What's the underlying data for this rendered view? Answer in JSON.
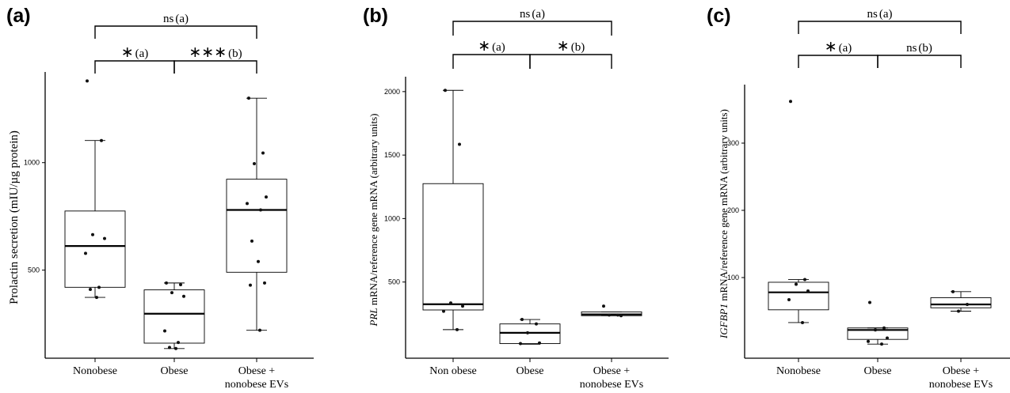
{
  "chart_data": [
    {
      "panel": "(a)",
      "type": "box",
      "ylabel": "Prolactin secretion (mIU/µg protein)",
      "ylabel_parts": [
        {
          "text": "Prolactin secretion (mIU/µg protein)",
          "italic": false
        }
      ],
      "categories": [
        [
          "Nonobese"
        ],
        [
          "Obese"
        ],
        [
          "Obese +",
          "nonobese EVs"
        ]
      ],
      "yticks": [
        500,
        1000
      ],
      "ylim": [
        90,
        1400
      ],
      "boxes": [
        {
          "q1": 420,
          "median": 612,
          "q3": 775,
          "whisker_low": 373,
          "whisker_high": 1103
        },
        {
          "q1": 160,
          "median": 297,
          "q3": 408,
          "whisker_low": 135,
          "whisker_high": 440
        },
        {
          "q1": 490,
          "median": 780,
          "q3": 923,
          "whisker_low": 220,
          "whisker_high": 1300
        }
      ],
      "points": [
        [
          1380,
          1103,
          665,
          647,
          578,
          420,
          410,
          373
        ],
        [
          440,
          432,
          395,
          378,
          217,
          163,
          140,
          135
        ],
        [
          1300,
          1045,
          995,
          840,
          810,
          780,
          635,
          540,
          440,
          430,
          220
        ]
      ],
      "comparisons": [
        {
          "from": 0,
          "to": 1,
          "symbol": "∗",
          "note": "(a)",
          "level": 1
        },
        {
          "from": 1,
          "to": 2,
          "symbol": "∗∗∗",
          "note": "(b)",
          "level": 1
        },
        {
          "from": 0,
          "to": 2,
          "symbol": "ns",
          "note": "(a)",
          "level": 2
        }
      ]
    },
    {
      "panel": "(b)",
      "type": "box",
      "ylabel": "PRL mRNA/reference gene mRNA (arbitrary units)",
      "ylabel_parts": [
        {
          "text": "PRL",
          "italic": true
        },
        {
          "text": " mRNA/reference gene mRNA (arbitrary units)",
          "italic": false
        }
      ],
      "categories": [
        [
          "Non obese"
        ],
        [
          "Obese"
        ],
        [
          "Obese +",
          "nonobese EVs"
        ]
      ],
      "yticks": [
        500,
        1000,
        1500,
        2000
      ],
      "ylim": [
        -100,
        2080
      ],
      "boxes": [
        {
          "q1": 280,
          "median": 325,
          "q3": 1275,
          "whisker_low": 125,
          "whisker_high": 2010
        },
        {
          "q1": 15,
          "median": 100,
          "q3": 170,
          "whisker_low": 10,
          "whisker_high": 205
        },
        {
          "q1": 235,
          "median": 245,
          "q3": 265,
          "whisker_low": 235,
          "whisker_high": 265
        }
      ],
      "points": [
        [
          2010,
          1585,
          335,
          310,
          270,
          125
        ],
        [
          205,
          170,
          100,
          20,
          15
        ],
        [
          310,
          240,
          240,
          235
        ]
      ],
      "comparisons": [
        {
          "from": 0,
          "to": 1,
          "symbol": "∗",
          "note": "(a)",
          "level": 1
        },
        {
          "from": 1,
          "to": 2,
          "symbol": "∗",
          "note": "(b)",
          "level": 1
        },
        {
          "from": 0,
          "to": 2,
          "symbol": "ns",
          "note": "(a)",
          "level": 2
        }
      ]
    },
    {
      "panel": "(c)",
      "type": "box",
      "ylabel": "IGFBP1 mRNA/reference gene mRNA (arbitrary units)",
      "ylabel_parts": [
        {
          "text": "IGFBP1",
          "italic": true
        },
        {
          "text": " mRNA/reference gene mRNA (arbitrary units)",
          "italic": false
        }
      ],
      "categories": [
        [
          "Nonobese"
        ],
        [
          "Obese"
        ],
        [
          "Obese +",
          "nonobese EVs"
        ]
      ],
      "yticks": [
        100,
        200,
        300
      ],
      "ylim": [
        -20,
        380
      ],
      "boxes": [
        {
          "q1": 52,
          "median": 78,
          "q3": 93,
          "whisker_low": 33,
          "whisker_high": 97
        },
        {
          "q1": 8,
          "median": 22,
          "q3": 25,
          "whisker_low": 1,
          "whisker_high": 25
        },
        {
          "q1": 55,
          "median": 60,
          "q3": 70,
          "whisker_low": 50,
          "whisker_high": 79
        }
      ],
      "points": [
        [
          362,
          97,
          90,
          80,
          67,
          33
        ],
        [
          63,
          25,
          22,
          10,
          5,
          1
        ],
        [
          79,
          60,
          50
        ]
      ],
      "comparisons": [
        {
          "from": 0,
          "to": 1,
          "symbol": "∗",
          "note": "(a)",
          "level": 1
        },
        {
          "from": 1,
          "to": 2,
          "symbol": "ns",
          "note": "(b)",
          "level": 1
        },
        {
          "from": 0,
          "to": 2,
          "symbol": "ns",
          "note": "(a)",
          "level": 2
        }
      ]
    }
  ]
}
